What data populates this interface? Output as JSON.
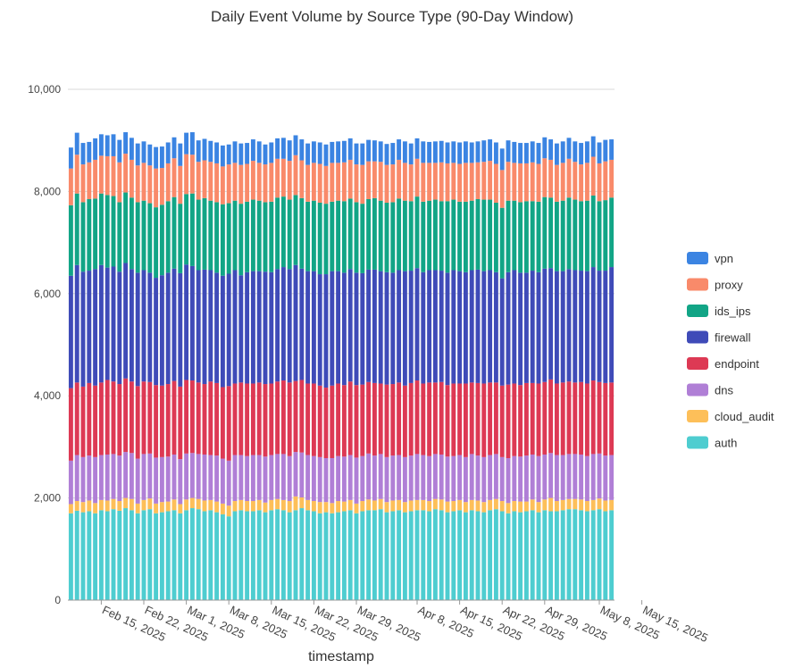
{
  "chart_data": {
    "type": "bar",
    "stacked": true,
    "title": "Daily Event Volume by Source Type (90-Day Window)",
    "xlabel": "timestamp",
    "ylabel": "",
    "ylim": [
      0,
      10000
    ],
    "y_ticks": [
      "0",
      "2,000",
      "4,000",
      "6,000",
      "8,000",
      "10,000"
    ],
    "y_tick_values": [
      0,
      2000,
      4000,
      6000,
      8000,
      10000
    ],
    "grid": true,
    "legend_position": "right",
    "start_date": "2025-02-10",
    "x_ticks": [
      {
        "label": "Feb 15, 2025",
        "date": "2025-02-15"
      },
      {
        "label": "Feb 22, 2025",
        "date": "2025-02-22"
      },
      {
        "label": "Mar 1, 2025",
        "date": "2025-03-01"
      },
      {
        "label": "Mar 8, 2025",
        "date": "2025-03-08"
      },
      {
        "label": "Mar 15, 2025",
        "date": "2025-03-15"
      },
      {
        "label": "Mar 22, 2025",
        "date": "2025-03-22"
      },
      {
        "label": "Mar 29, 2025",
        "date": "2025-03-29"
      },
      {
        "label": "Apr 8, 2025",
        "date": "2025-04-08"
      },
      {
        "label": "Apr 15, 2025",
        "date": "2025-04-15"
      },
      {
        "label": "Apr 22, 2025",
        "date": "2025-04-22"
      },
      {
        "label": "Apr 29, 2025",
        "date": "2025-04-29"
      },
      {
        "label": "May 8, 2025",
        "date": "2025-05-08"
      },
      {
        "label": "May 15, 2025",
        "date": "2025-05-15"
      }
    ],
    "x": [
      "2025-02-10",
      "2025-02-11",
      "2025-02-12",
      "2025-02-13",
      "2025-02-14",
      "2025-02-15",
      "2025-02-16",
      "2025-02-17",
      "2025-02-18",
      "2025-02-19",
      "2025-02-20",
      "2025-02-21",
      "2025-02-22",
      "2025-02-23",
      "2025-02-24",
      "2025-02-25",
      "2025-02-26",
      "2025-02-27",
      "2025-02-28",
      "2025-03-01",
      "2025-03-02",
      "2025-03-03",
      "2025-03-04",
      "2025-03-05",
      "2025-03-06",
      "2025-03-07",
      "2025-03-08",
      "2025-03-09",
      "2025-03-10",
      "2025-03-11",
      "2025-03-12",
      "2025-03-13",
      "2025-03-14",
      "2025-03-15",
      "2025-03-16",
      "2025-03-17",
      "2025-03-18",
      "2025-03-19",
      "2025-03-20",
      "2025-03-21",
      "2025-03-22",
      "2025-03-23",
      "2025-03-24",
      "2025-03-25",
      "2025-03-26",
      "2025-03-27",
      "2025-03-28",
      "2025-03-29",
      "2025-03-30",
      "2025-03-31",
      "2025-04-01",
      "2025-04-02",
      "2025-04-03",
      "2025-04-04",
      "2025-04-05",
      "2025-04-06",
      "2025-04-07",
      "2025-04-08",
      "2025-04-09",
      "2025-04-10",
      "2025-04-11",
      "2025-04-12",
      "2025-04-13",
      "2025-04-14",
      "2025-04-15",
      "2025-04-16",
      "2025-04-17",
      "2025-04-18",
      "2025-04-19",
      "2025-04-20",
      "2025-04-21",
      "2025-04-22",
      "2025-04-23",
      "2025-04-24",
      "2025-04-25",
      "2025-04-26",
      "2025-04-27",
      "2025-04-28",
      "2025-04-29",
      "2025-04-30",
      "2025-05-01",
      "2025-05-02",
      "2025-05-03",
      "2025-05-04",
      "2025-05-05",
      "2025-05-06",
      "2025-05-07",
      "2025-05-08",
      "2025-05-09",
      "2025-05-10"
    ],
    "series": [
      {
        "name": "auth",
        "color": "#4ecdd0",
        "values": [
          1700,
          1750,
          1720,
          1740,
          1700,
          1760,
          1740,
          1780,
          1750,
          1800,
          1760,
          1700,
          1760,
          1780,
          1700,
          1720,
          1740,
          1760,
          1700,
          1760,
          1800,
          1780,
          1740,
          1760,
          1720,
          1680,
          1640,
          1740,
          1760,
          1740,
          1740,
          1760,
          1720,
          1760,
          1780,
          1760,
          1720,
          1760,
          1800,
          1760,
          1740,
          1700,
          1720,
          1700,
          1720,
          1740,
          1760,
          1700,
          1740,
          1760,
          1760,
          1780,
          1720,
          1740,
          1760,
          1720,
          1740,
          1760,
          1760,
          1740,
          1780,
          1760,
          1720,
          1740,
          1760,
          1720,
          1760,
          1740,
          1720,
          1760,
          1780,
          1740,
          1700,
          1740,
          1720,
          1740,
          1760,
          1720,
          1760,
          1740,
          1740,
          1760,
          1780,
          1780,
          1760,
          1740,
          1760,
          1780,
          1740,
          1760
        ]
      },
      {
        "name": "cloud_audit",
        "color": "#fdbf59",
        "values": [
          180,
          190,
          200,
          210,
          200,
          200,
          210,
          200,
          190,
          200,
          220,
          190,
          200,
          210,
          190,
          200,
          190,
          210,
          180,
          210,
          200,
          200,
          210,
          200,
          210,
          210,
          210,
          200,
          200,
          200,
          200,
          200,
          190,
          200,
          200,
          200,
          220,
          270,
          210,
          200,
          200,
          220,
          200,
          200,
          220,
          190,
          200,
          190,
          200,
          210,
          190,
          200,
          200,
          210,
          200,
          200,
          210,
          200,
          200,
          200,
          200,
          210,
          210,
          200,
          200,
          200,
          200,
          210,
          200,
          200,
          200,
          200,
          200,
          200,
          210,
          190,
          210,
          200,
          210,
          260,
          200,
          200,
          200,
          200,
          210,
          200,
          200,
          210,
          210,
          200
        ]
      },
      {
        "name": "dns",
        "color": "#b07fd6",
        "values": [
          850,
          900,
          880,
          880,
          900,
          880,
          900,
          880,
          890,
          900,
          900,
          880,
          900,
          880,
          900,
          880,
          880,
          880,
          880,
          900,
          880,
          880,
          900,
          880,
          900,
          880,
          880,
          900,
          880,
          880,
          900,
          880,
          900,
          880,
          880,
          900,
          880,
          870,
          880,
          880,
          880,
          880,
          860,
          880,
          880,
          880,
          880,
          900,
          880,
          900,
          880,
          880,
          880,
          880,
          880,
          880,
          880,
          900,
          880,
          880,
          880,
          880,
          880,
          880,
          880,
          880,
          900,
          880,
          880,
          880,
          880,
          860,
          880,
          880,
          880,
          900,
          880,
          900,
          880,
          880,
          900,
          880,
          880,
          880,
          880,
          880,
          900,
          880,
          880,
          880
        ]
      },
      {
        "name": "endpoint",
        "color": "#dd3954",
        "values": [
          1420,
          1420,
          1380,
          1420,
          1400,
          1420,
          1460,
          1420,
          1400,
          1440,
          1400,
          1420,
          1420,
          1400,
          1420,
          1400,
          1420,
          1440,
          1420,
          1440,
          1420,
          1400,
          1380,
          1440,
          1420,
          1400,
          1460,
          1400,
          1420,
          1420,
          1400,
          1420,
          1420,
          1400,
          1420,
          1440,
          1440,
          1390,
          1420,
          1400,
          1420,
          1400,
          1380,
          1420,
          1420,
          1400,
          1440,
          1420,
          1400,
          1400,
          1420,
          1380,
          1420,
          1400,
          1420,
          1400,
          1420,
          1440,
          1400,
          1440,
          1400,
          1420,
          1400,
          1420,
          1400,
          1440,
          1400,
          1420,
          1440,
          1420,
          1400,
          1400,
          1440,
          1420,
          1400,
          1420,
          1400,
          1420,
          1420,
          1440,
          1400,
          1420,
          1420,
          1400,
          1420,
          1420,
          1440,
          1400,
          1420,
          1420
        ]
      },
      {
        "name": "firewall",
        "color": "#3f4bb8",
        "values": [
          2200,
          2300,
          2250,
          2200,
          2280,
          2300,
          2200,
          2250,
          2200,
          2260,
          2200,
          2220,
          2180,
          2140,
          2100,
          2160,
          2180,
          2200,
          2220,
          2260,
          2240,
          2200,
          2240,
          2180,
          2160,
          2180,
          2200,
          2220,
          2100,
          2180,
          2200,
          2180,
          2200,
          2180,
          2200,
          2220,
          2220,
          2270,
          2180,
          2200,
          2200,
          2180,
          2220,
          2240,
          2200,
          2200,
          2200,
          2200,
          2180,
          2200,
          2220,
          2200,
          2200,
          2180,
          2200,
          2240,
          2200,
          2200,
          2180,
          2200,
          2200,
          2180,
          2200,
          2220,
          2200,
          2180,
          2200,
          2220,
          2200,
          2200,
          2160,
          2100,
          2200,
          2220,
          2200,
          2160,
          2200,
          2180,
          2220,
          2180,
          2200,
          2180,
          2200,
          2200,
          2180,
          2200,
          2220,
          2180,
          2200,
          2260
        ]
      },
      {
        "name": "ids_ips",
        "color": "#12a586",
        "values": [
          1380,
          1400,
          1360,
          1400,
          1380,
          1400,
          1420,
          1380,
          1360,
          1380,
          1400,
          1380,
          1360,
          1360,
          1380,
          1380,
          1400,
          1400,
          1360,
          1380,
          1420,
          1380,
          1400,
          1360,
          1380,
          1400,
          1380,
          1360,
          1400,
          1380,
          1400,
          1380,
          1360,
          1380,
          1400,
          1380,
          1360,
          1370,
          1380,
          1360,
          1380,
          1400,
          1380,
          1360,
          1380,
          1400,
          1380,
          1380,
          1360,
          1380,
          1400,
          1380,
          1360,
          1380,
          1400,
          1380,
          1360,
          1400,
          1380,
          1360,
          1380,
          1360,
          1400,
          1380,
          1360,
          1380,
          1360,
          1380,
          1400,
          1380,
          1360,
          1380,
          1400,
          1360,
          1380,
          1400,
          1360,
          1380,
          1400,
          1380,
          1360,
          1380,
          1400,
          1380,
          1360,
          1380,
          1400,
          1360,
          1380,
          1360
        ]
      },
      {
        "name": "proxy",
        "color": "#f98a6a",
        "values": [
          720,
          760,
          740,
          720,
          760,
          740,
          760,
          780,
          780,
          760,
          740,
          720,
          740,
          740,
          760,
          720,
          740,
          760,
          740,
          780,
          760,
          740,
          740,
          760,
          760,
          740,
          760,
          740,
          760,
          740,
          760,
          740,
          740,
          760,
          760,
          740,
          760,
          780,
          740,
          720,
          740,
          760,
          740,
          760,
          740,
          760,
          760,
          740,
          760,
          740,
          720,
          760,
          740,
          740,
          760,
          740,
          720,
          740,
          760,
          740,
          720,
          760,
          740,
          720,
          740,
          760,
          740,
          720,
          740,
          760,
          760,
          740,
          760,
          740,
          760,
          740,
          760,
          740,
          760,
          740,
          720,
          740,
          760,
          740,
          720,
          740,
          760,
          740,
          760,
          740
        ]
      },
      {
        "name": "vpn",
        "color": "#3b84e2",
        "values": [
          410,
          430,
          420,
          400,
          420,
          420,
          410,
          430,
          440,
          420,
          430,
          430,
          420,
          410,
          420,
          420,
          410,
          410,
          440,
          420,
          440,
          420,
          420,
          410,
          410,
          410,
          390,
          420,
          420,
          410,
          420,
          420,
          390,
          400,
          400,
          410,
          400,
          390,
          410,
          420,
          420,
          420,
          420,
          410,
          420,
          420,
          420,
          410,
          420,
          420,
          410,
          400,
          410,
          420,
          400,
          420,
          410,
          400,
          420,
          410,
          420,
          420,
          410,
          420,
          420,
          420,
          400,
          410,
          420,
          420,
          420,
          420,
          420,
          410,
          400,
          400,
          410,
          410,
          410,
          400,
          420,
          420,
          410,
          400,
          420,
          420,
          400,
          410,
          420,
          400
        ]
      }
    ],
    "legend": [
      "vpn",
      "proxy",
      "ids_ips",
      "firewall",
      "endpoint",
      "dns",
      "cloud_audit",
      "auth"
    ]
  }
}
